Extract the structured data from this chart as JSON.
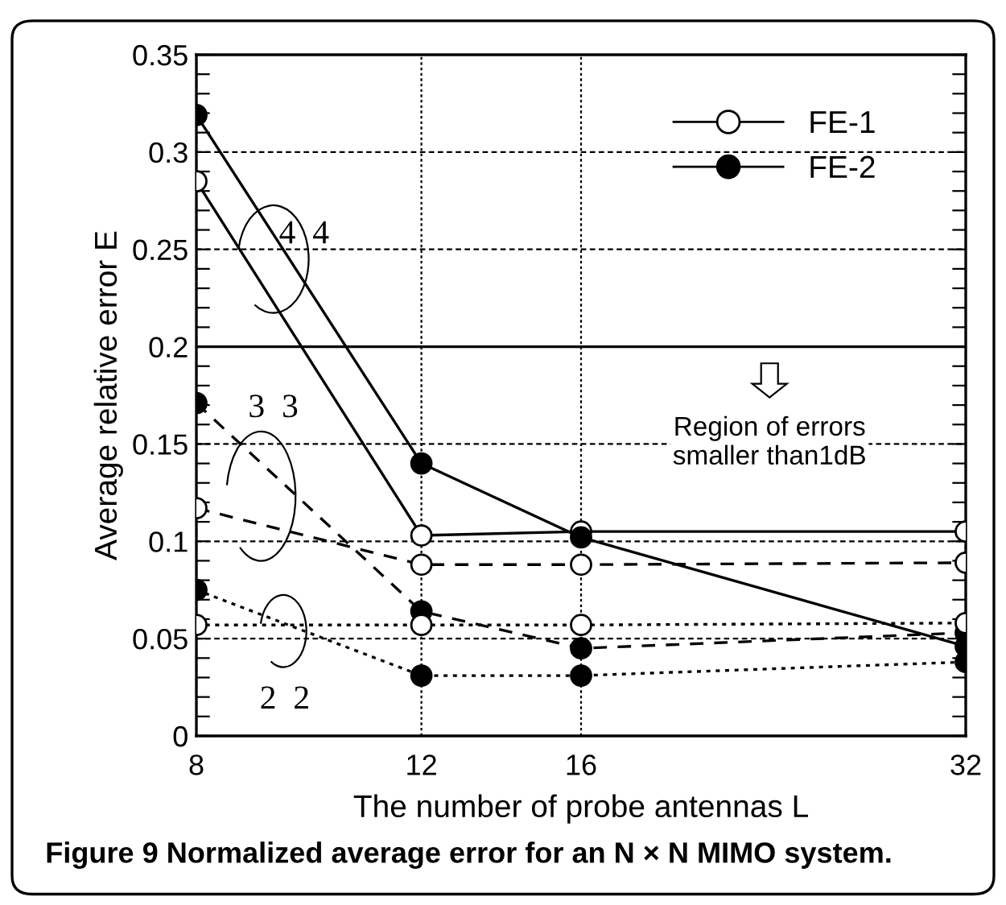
{
  "chart_data": {
    "type": "line",
    "title": "Figure 9 Normalized average error for an N × N MIMO system.",
    "xlabel": "The number of probe antennas L",
    "ylabel": "Average relative error E",
    "x": [
      8,
      12,
      16,
      32
    ],
    "log": "x",
    "series": [
      {
        "name": "FE-1",
        "color": "#ffffff",
        "line_style": "solid",
        "values": [
          0.285,
          0.103,
          0.105,
          0.105
        ]
      },
      {
        "name": "FE-2",
        "color": "#000000",
        "line_style": "solid",
        "values": [
          0.319,
          0.14,
          0.102,
          0.046
        ]
      },
      {
        "color": "#ffffff",
        "line_style": "dashed",
        "values": [
          0.117,
          0.088,
          0.088,
          0.089
        ]
      },
      {
        "color": "#000000",
        "line_style": "dashed",
        "values": [
          0.171,
          0.064,
          0.045,
          0.053
        ]
      },
      {
        "color": "#ffffff",
        "line_style": "dotted",
        "values": [
          0.057,
          0.057,
          0.057,
          0.058
        ]
      },
      {
        "color": "#000000",
        "line_style": "dotted",
        "values": [
          0.075,
          0.031,
          0.031,
          0.038
        ]
      }
    ],
    "xlim": [
      8,
      32
    ],
    "xticks": [
      8,
      12,
      16,
      32
    ],
    "ylim": [
      0,
      0.35
    ],
    "yticks": [
      0,
      {
        "value": 0.01,
        "label": null
      },
      {
        "value": 0.02,
        "label": null
      },
      {
        "value": 0.03,
        "label": null
      },
      {
        "value": 0.04,
        "label": null
      },
      0.05,
      {
        "value": 0.06,
        "label": null
      },
      {
        "value": 0.07,
        "label": null
      },
      {
        "value": 0.08,
        "label": null
      },
      {
        "value": 0.09,
        "label": null
      },
      0.1,
      {
        "value": 0.11,
        "label": null
      },
      {
        "value": 0.12,
        "label": null
      },
      {
        "value": 0.13,
        "label": null
      },
      {
        "value": 0.14,
        "label": null
      },
      0.15,
      {
        "value": 0.16,
        "label": null
      },
      {
        "value": 0.17,
        "label": null
      },
      {
        "value": 0.18,
        "label": null
      },
      {
        "value": 0.19,
        "label": null
      },
      0.2,
      {
        "value": 0.21,
        "label": null
      },
      {
        "value": 0.22,
        "label": null
      },
      {
        "value": 0.23,
        "label": null
      },
      {
        "value": 0.24,
        "label": null
      },
      0.25,
      {
        "value": 0.26,
        "label": null
      },
      {
        "value": 0.27,
        "label": null
      },
      {
        "value": 0.28,
        "label": null
      },
      {
        "value": 0.29,
        "label": null
      },
      0.3,
      {
        "value": 0.31,
        "label": null
      },
      {
        "value": 0.32,
        "label": null
      },
      {
        "value": 0.33,
        "label": null
      },
      {
        "value": 0.34,
        "label": null
      },
      0.35
    ],
    "ref_lines": [
      {
        "axis": "y",
        "value": 0.2,
        "color": "#000000",
        "line_style": "solid"
      }
    ],
    "annotations": [
      "4  4",
      "3  3",
      "2  2",
      "Region of errors\nsmaller than1dB"
    ],
    "grid": true,
    "legend": "top right",
    "marker": "circle"
  }
}
